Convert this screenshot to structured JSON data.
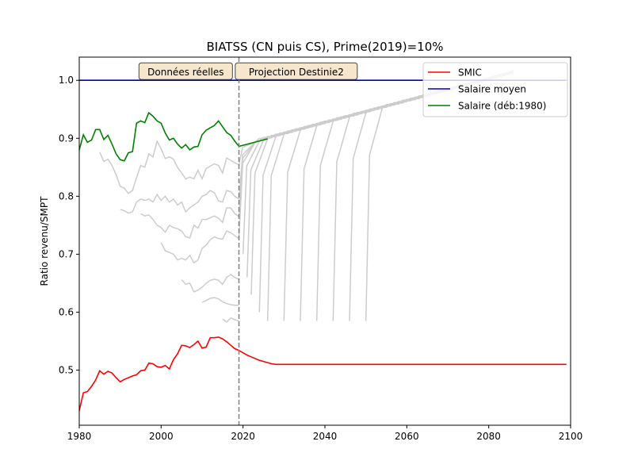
{
  "chart_data": {
    "type": "line",
    "title": "BIATSS (CN puis CS), Prime(2019)=10%",
    "xlabel": "",
    "ylabel": "Ratio revenu/SMPT",
    "xlim": [
      1980,
      2100
    ],
    "ylim": [
      0.405,
      1.04
    ],
    "x_ticks": [
      1980,
      2000,
      2020,
      2040,
      2060,
      2080,
      2100
    ],
    "y_ticks": [
      0.5,
      0.6,
      0.7,
      0.8,
      0.9,
      1.0
    ],
    "grid": false,
    "legend_position": "top-right",
    "annotations": [
      {
        "text": "Données réelles",
        "x": 2006,
        "y": 1.015
      },
      {
        "text": "Projection Destinie2",
        "x": 2033,
        "y": 1.015
      }
    ],
    "vline": {
      "x": 2019,
      "style": "dashed",
      "color": "#808080"
    },
    "series": [
      {
        "name": "SMIC",
        "color": "#ff0000",
        "x": [
          1980,
          1981,
          1982,
          1983,
          1984,
          1985,
          1986,
          1987,
          1988,
          1989,
          1990,
          1991,
          1992,
          1993,
          1994,
          1995,
          1996,
          1997,
          1998,
          1999,
          2000,
          2001,
          2002,
          2003,
          2004,
          2005,
          2006,
          2007,
          2008,
          2009,
          2010,
          2011,
          2012,
          2013,
          2014,
          2015,
          2016,
          2017,
          2018,
          2019,
          2020,
          2021,
          2022,
          2023,
          2024,
          2025,
          2026,
          2027,
          2028,
          2030,
          2040,
          2060,
          2080,
          2099
        ],
        "y": [
          0.43,
          0.461,
          0.463,
          0.472,
          0.483,
          0.499,
          0.493,
          0.498,
          0.495,
          0.487,
          0.48,
          0.484,
          0.487,
          0.49,
          0.492,
          0.499,
          0.5,
          0.512,
          0.511,
          0.506,
          0.505,
          0.508,
          0.502,
          0.518,
          0.528,
          0.543,
          0.542,
          0.539,
          0.544,
          0.55,
          0.538,
          0.54,
          0.556,
          0.556,
          0.557,
          0.554,
          0.549,
          0.543,
          0.537,
          0.534,
          0.53,
          0.526,
          0.523,
          0.52,
          0.517,
          0.515,
          0.513,
          0.511,
          0.51,
          0.51,
          0.51,
          0.51,
          0.51,
          0.51
        ]
      },
      {
        "name": "Salaire moyen",
        "color": "#0000bf",
        "x": [
          1980,
          2099
        ],
        "y": [
          1.0,
          1.0
        ]
      },
      {
        "name": "Salaire (déb:1980)",
        "color": "#008000",
        "x": [
          1980,
          1981,
          1982,
          1983,
          1984,
          1985,
          1986,
          1987,
          1988,
          1989,
          1990,
          1991,
          1992,
          1993,
          1994,
          1995,
          1996,
          1997,
          1998,
          1999,
          2000,
          2001,
          2002,
          2003,
          2004,
          2005,
          2006,
          2007,
          2008,
          2009,
          2010,
          2011,
          2012,
          2013,
          2014,
          2015,
          2016,
          2017,
          2018,
          2019,
          2026
        ],
        "y": [
          0.88,
          0.906,
          0.893,
          0.897,
          0.915,
          0.915,
          0.898,
          0.905,
          0.89,
          0.873,
          0.863,
          0.861,
          0.875,
          0.877,
          0.926,
          0.93,
          0.927,
          0.944,
          0.938,
          0.93,
          0.926,
          0.909,
          0.897,
          0.9,
          0.89,
          0.883,
          0.889,
          0.88,
          0.885,
          0.886,
          0.906,
          0.914,
          0.918,
          0.922,
          0.93,
          0.92,
          0.91,
          0.905,
          0.895,
          0.886,
          0.899
        ]
      }
    ],
    "gray_curves": {
      "color": "#cccccc",
      "observed": [
        {
          "x": [
            1985,
            1986,
            1987,
            1988,
            1989,
            1990,
            1991,
            1992,
            1993,
            1994,
            1995,
            1996,
            1997,
            1998,
            1999,
            2000,
            2001,
            2002,
            2003,
            2004,
            2005,
            2006,
            2007,
            2008,
            2009,
            2010,
            2011,
            2012,
            2013,
            2014,
            2015,
            2016,
            2017,
            2018,
            2019
          ],
          "y": [
            0.876,
            0.86,
            0.864,
            0.853,
            0.837,
            0.817,
            0.814,
            0.805,
            0.81,
            0.832,
            0.853,
            0.85,
            0.873,
            0.868,
            0.895,
            0.882,
            0.865,
            0.868,
            0.864,
            0.85,
            0.84,
            0.83,
            0.833,
            0.83,
            0.845,
            0.83,
            0.848,
            0.852,
            0.856,
            0.853,
            0.84,
            0.866,
            0.862,
            0.858,
            0.854
          ]
        },
        {
          "x": [
            1990,
            1991,
            1992,
            1993,
            1994,
            1995,
            1996,
            1997,
            1998,
            1999,
            2000,
            2001,
            2002,
            2003,
            2004,
            2005,
            2006,
            2007,
            2008,
            2009,
            2010,
            2011,
            2012,
            2013,
            2014,
            2015,
            2016,
            2017,
            2018,
            2019
          ],
          "y": [
            0.777,
            0.775,
            0.771,
            0.773,
            0.79,
            0.795,
            0.793,
            0.795,
            0.79,
            0.803,
            0.793,
            0.8,
            0.79,
            0.795,
            0.785,
            0.79,
            0.773,
            0.78,
            0.785,
            0.79,
            0.8,
            0.803,
            0.81,
            0.806,
            0.792,
            0.79,
            0.81,
            0.808,
            0.8,
            0.795
          ]
        },
        {
          "x": [
            1995,
            1996,
            1997,
            1998,
            1999,
            2000,
            2001,
            2002,
            2003,
            2004,
            2005,
            2006,
            2007,
            2008,
            2009,
            2010,
            2011,
            2012,
            2013,
            2014,
            2015,
            2016,
            2017,
            2018,
            2019
          ],
          "y": [
            0.77,
            0.766,
            0.768,
            0.76,
            0.75,
            0.746,
            0.738,
            0.75,
            0.746,
            0.744,
            0.74,
            0.73,
            0.728,
            0.75,
            0.745,
            0.76,
            0.76,
            0.763,
            0.766,
            0.762,
            0.755,
            0.78,
            0.78,
            0.77,
            0.765
          ]
        },
        {
          "x": [
            2000,
            2001,
            2002,
            2003,
            2004,
            2005,
            2006,
            2007,
            2008,
            2009,
            2010,
            2011,
            2012,
            2013,
            2014,
            2015,
            2016,
            2017,
            2018,
            2019
          ],
          "y": [
            0.72,
            0.706,
            0.703,
            0.7,
            0.69,
            0.693,
            0.69,
            0.698,
            0.685,
            0.69,
            0.71,
            0.716,
            0.725,
            0.73,
            0.727,
            0.726,
            0.74,
            0.737,
            0.732,
            0.727
          ]
        },
        {
          "x": [
            2005,
            2006,
            2007,
            2008,
            2009,
            2010,
            2011,
            2012,
            2013,
            2014,
            2015,
            2016,
            2017,
            2018,
            2019
          ],
          "y": [
            0.656,
            0.648,
            0.65,
            0.635,
            0.638,
            0.643,
            0.65,
            0.655,
            0.657,
            0.655,
            0.648,
            0.66,
            0.665,
            0.66,
            0.657
          ]
        },
        {
          "x": [
            2010,
            2011,
            2012,
            2013,
            2014,
            2015,
            2016,
            2017,
            2018,
            2019
          ],
          "y": [
            0.617,
            0.62,
            0.624,
            0.625,
            0.623,
            0.618,
            0.615,
            0.613,
            0.612,
            0.612
          ]
        },
        {
          "x": [
            2015,
            2016,
            2017,
            2018,
            2019
          ],
          "y": [
            0.588,
            0.583,
            0.59,
            0.587,
            0.585
          ]
        }
      ],
      "projection_shape": {
        "start_x": [
          2019,
          2019,
          2019,
          2019,
          2020,
          2021,
          2022,
          2024,
          2026,
          2030,
          2034,
          2038,
          2042,
          2046,
          2050
        ],
        "start_y": [
          0.854,
          0.796,
          0.765,
          0.727,
          0.7,
          0.66,
          0.63,
          0.6,
          0.585,
          0.585,
          0.585,
          0.585,
          0.585,
          0.585,
          0.585
        ],
        "period_years": 4,
        "end_x": 2086
      }
    }
  }
}
